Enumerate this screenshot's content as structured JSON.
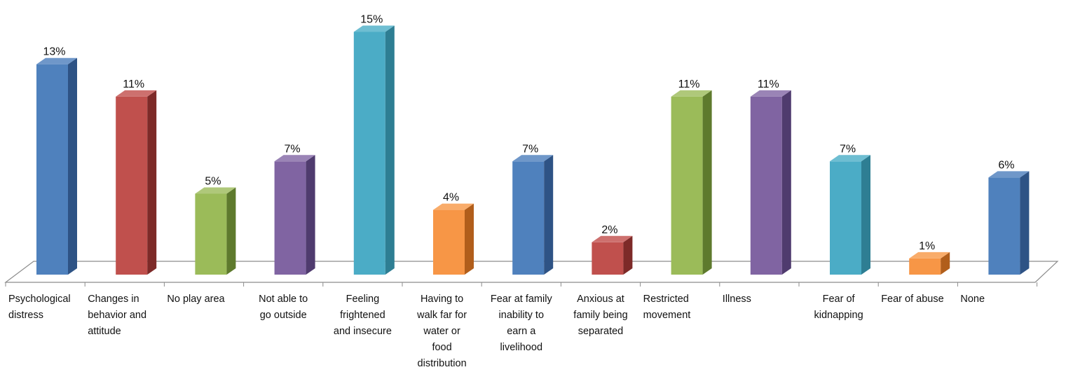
{
  "chart_data": {
    "type": "bar",
    "style": "3d-column",
    "title": "",
    "xlabel": "",
    "ylabel": "",
    "grid": false,
    "legend": "none",
    "ylim": [
      0,
      16
    ],
    "categories": [
      "Psychological\ndistress",
      "Changes in\nbehavior and\nattitude",
      "No play area",
      "Not able to\ngo outside",
      "Feeling\nfrightened\nand insecure",
      "Having to\nwalk far for\nwater or\nfood\ndistribution",
      "Fear at family\ninability to\nearn a\nlivelihood",
      "Anxious at\nfamily being\nseparated",
      "Restricted\nmovement",
      "Illness",
      "Fear of\nkidnapping",
      "Fear of abuse",
      "None"
    ],
    "values": [
      13,
      11,
      5,
      7,
      15,
      4,
      7,
      2,
      11,
      11,
      7,
      1,
      6
    ],
    "data_labels": [
      "13%",
      "11%",
      "5%",
      "7%",
      "15%",
      "4%",
      "7%",
      "2%",
      "11%",
      "11%",
      "7%",
      "1%",
      "6%"
    ],
    "colors": [
      "#4F81BD",
      "#C0504D",
      "#9BBB59",
      "#8064A2",
      "#4BACC6",
      "#F79646",
      "#4F81BD",
      "#C0504D",
      "#9BBB59",
      "#8064A2",
      "#4BACC6",
      "#F79646",
      "#4F81BD"
    ],
    "side_colors": [
      "#2E5385",
      "#7D2A28",
      "#5E7A2D",
      "#4F3B6E",
      "#2E7E93",
      "#B15E1B",
      "#2E5385",
      "#7D2A28",
      "#5E7A2D",
      "#4F3B6E",
      "#2E7E93",
      "#B15E1B",
      "#2E5385"
    ],
    "top_colors": [
      "#6F97C9",
      "#CD706E",
      "#AFC87A",
      "#9A84B6",
      "#6EBED2",
      "#F9AC6A",
      "#6F97C9",
      "#CD706E",
      "#AFC87A",
      "#9A84B6",
      "#6EBED2",
      "#F9AC6A",
      "#6F97C9"
    ]
  }
}
